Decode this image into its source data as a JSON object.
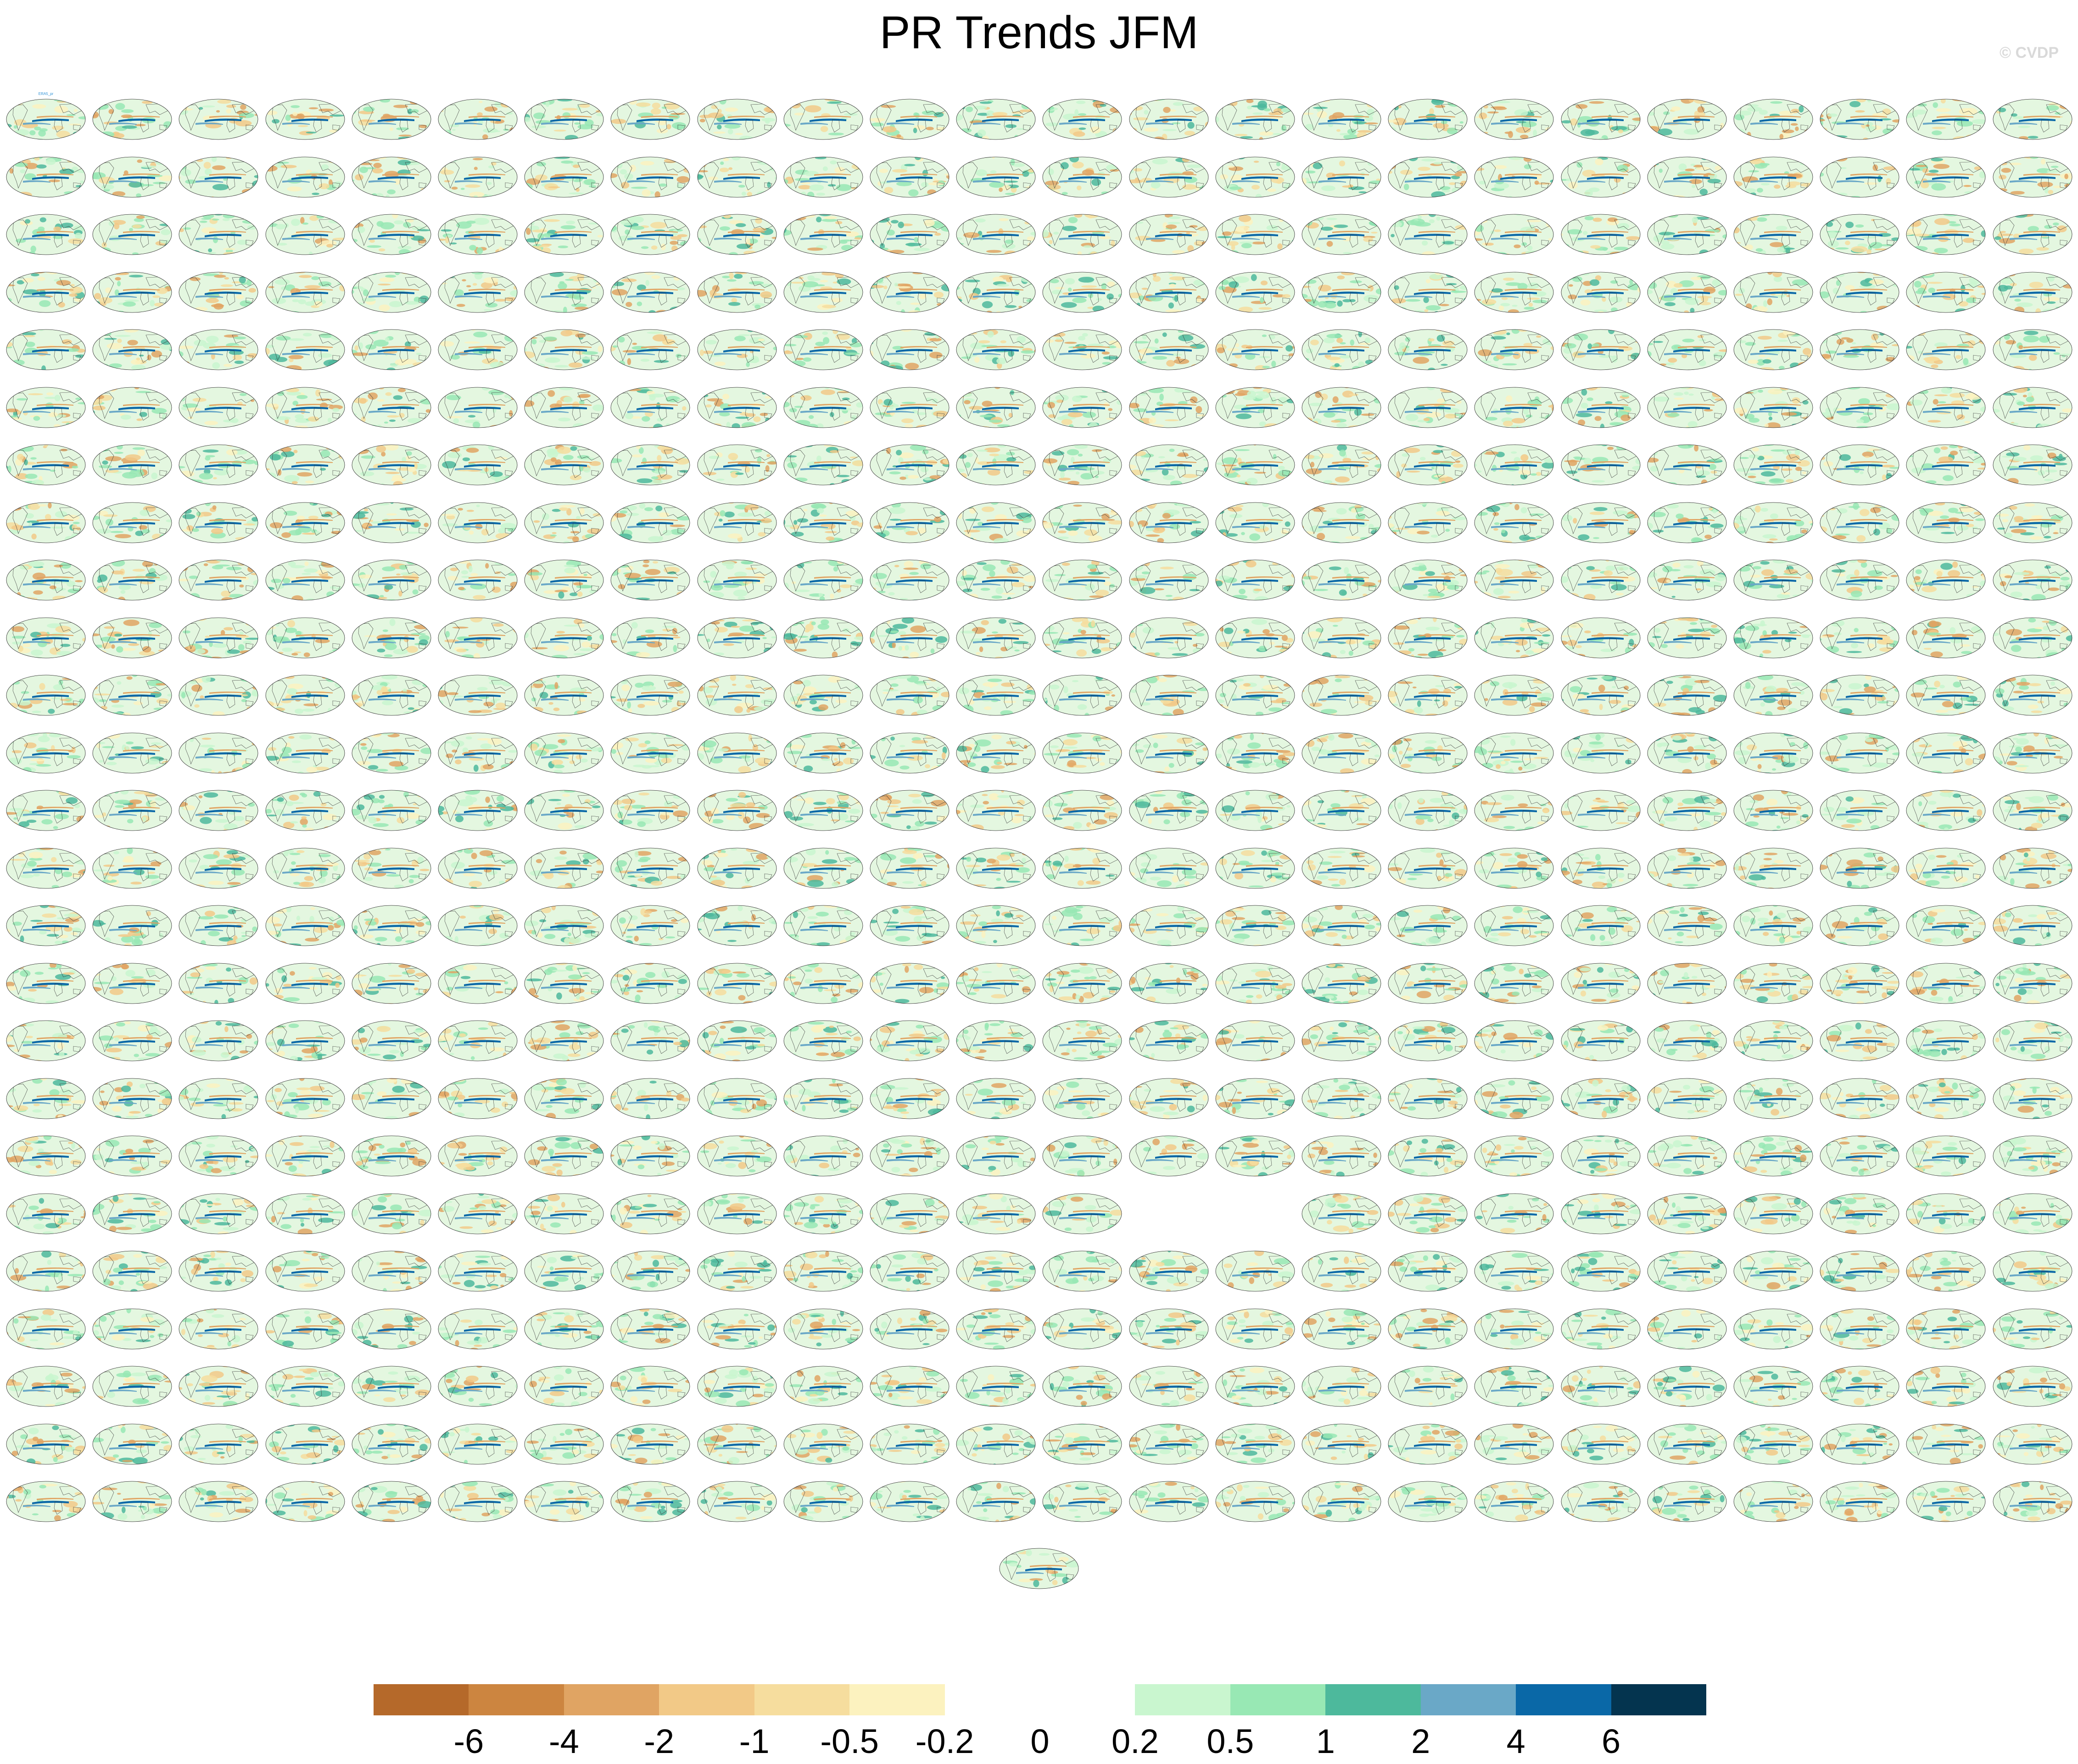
{
  "page": {
    "title": "PR Trends JFM",
    "watermark": "© CVDP"
  },
  "chart_data": {
    "type": "heatmap",
    "title": "PR Trends JFM",
    "description_of_layout": "small-multiples grid of global precipitation trend maps",
    "grid": {
      "rows": 25,
      "columns": 24,
      "missing_panels": [
        {
          "row": 19,
          "columns": [
            13,
            14
          ]
        }
      ],
      "extra_centered_panel": true
    },
    "panel_caption_first": "ERA5_pr",
    "colorbar": {
      "levels": [
        "-6",
        "-4",
        "-2",
        "-1",
        "-0.5",
        "-0.2",
        "0",
        "0.2",
        "0.5",
        "1",
        "2",
        "4",
        "6"
      ],
      "colors": [
        "#b5692a",
        "#cc8540",
        "#e0a463",
        "#f2c987",
        "#f6dd9e",
        "#fcf2bf",
        "#ffffff",
        "#ffffff",
        "#c9f6cf",
        "#98e8b4",
        "#4db99c",
        "#6aa8c7",
        "#0a68a7",
        "#04344f"
      ]
    }
  }
}
